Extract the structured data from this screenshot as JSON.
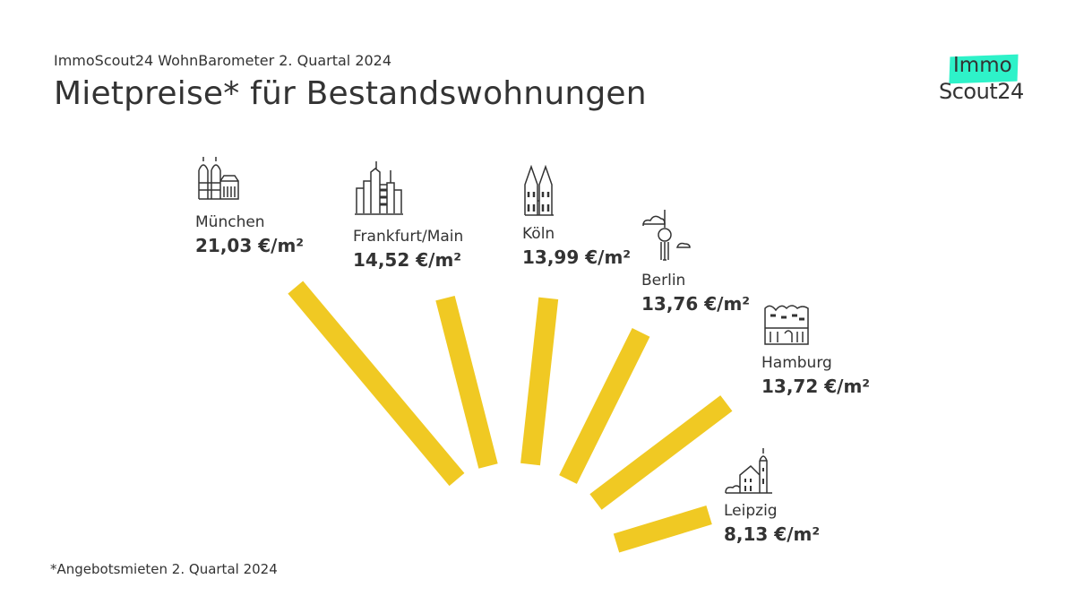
{
  "header": {
    "subtitle": "ImmoScout24 WohnBarometer 2. Quartal 2024",
    "title": "Mietpreise* für Bestandswohnungen"
  },
  "logo": {
    "line1": "Immo",
    "line2": "Scout24",
    "accent": "#2EF2C9"
  },
  "footnote": "*Angebotsmieten 2. Quartal 2024",
  "chart_data": {
    "type": "bar",
    "layout": "radial",
    "bar_color": "#F0C923",
    "unit": "€/m²",
    "categories": [
      "München",
      "Frankfurt/Main",
      "Köln",
      "Berlin",
      "Hamburg",
      "Leipzig"
    ],
    "values": [
      21.03,
      14.52,
      13.99,
      13.76,
      13.72,
      8.13
    ],
    "labels": [
      "21,03 €/m²",
      "14,52 €/m²",
      "13,99 €/m²",
      "13,76 €/m²",
      "13,72 €/m²",
      "8,13 €/m²"
    ],
    "icons": [
      "frauenkirche-icon",
      "skyline-icon",
      "cathedral-icon",
      "tv-tower-icon",
      "elbphilharmonie-icon",
      "old-town-hall-icon"
    ]
  }
}
